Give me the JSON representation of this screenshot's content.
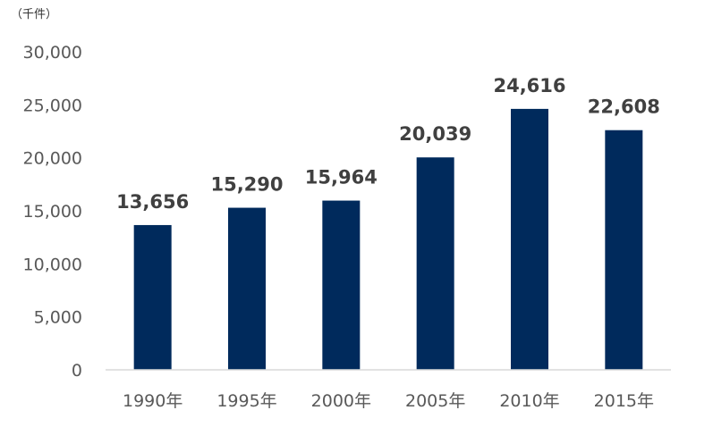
{
  "chart_data": {
    "type": "bar",
    "unit_label": "（千件）",
    "categories": [
      "1990年",
      "1995年",
      "2000年",
      "2005年",
      "2010年",
      "2015年"
    ],
    "values": [
      13656,
      15290,
      15964,
      20039,
      24616,
      22608
    ],
    "value_labels": [
      "13,656",
      "15,290",
      "15,964",
      "20,039",
      "24,616",
      "22,608"
    ],
    "yticks": [
      "0",
      "5,000",
      "10,000",
      "15,000",
      "20,000",
      "25,000",
      "30,000"
    ],
    "ylim": [
      0,
      30000
    ],
    "bar_color": "#002a5c",
    "grid": false,
    "legend": "none"
  }
}
